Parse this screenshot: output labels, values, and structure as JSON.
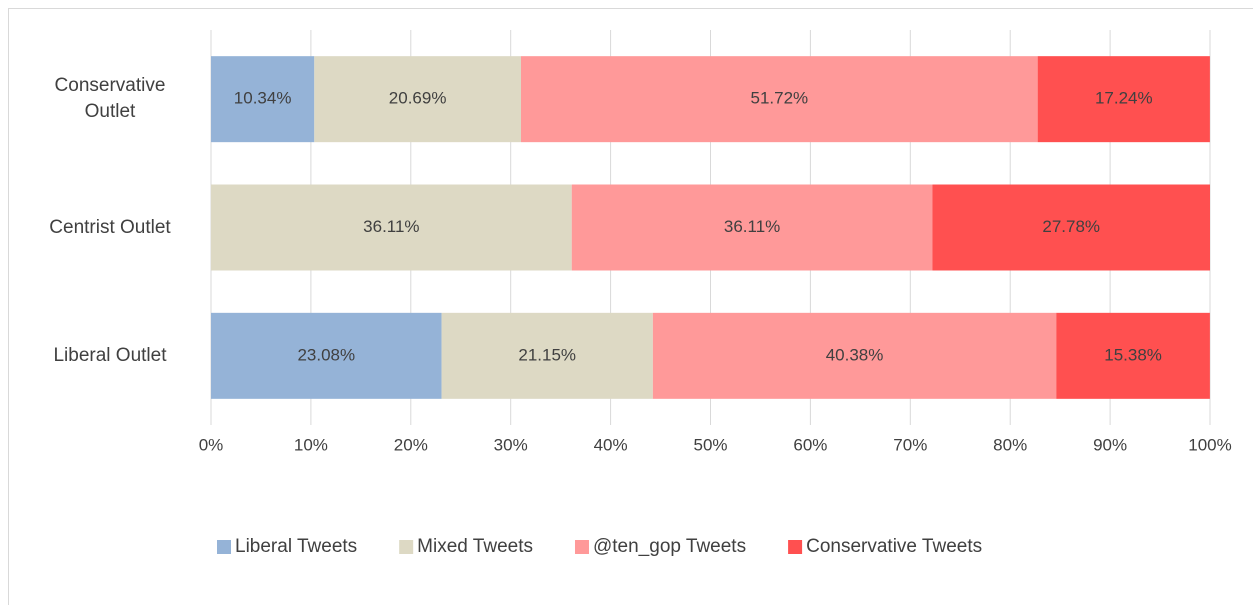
{
  "chart_data": {
    "type": "stacked-barh",
    "categories": [
      "Conservative Outlet",
      "Centrist Outlet",
      "Liberal Outlet"
    ],
    "series": [
      {
        "name": "Liberal Tweets",
        "color": "#95b3d7",
        "values": [
          10.34,
          null,
          23.08
        ],
        "value_labels": [
          "10.34%",
          null,
          "23.08%"
        ]
      },
      {
        "name": "Mixed Tweets",
        "color": "#ddd9c4",
        "values": [
          20.69,
          36.11,
          21.15
        ],
        "value_labels": [
          "20.69%",
          "36.11%",
          "21.15%"
        ]
      },
      {
        "name": "@ten_gop Tweets",
        "color": "#ff9999",
        "values": [
          51.72,
          36.11,
          40.38
        ],
        "value_labels": [
          "51.72%",
          "36.11%",
          "40.38%"
        ]
      },
      {
        "name": "Conservative Tweets",
        "color": "#ff5050",
        "values": [
          17.24,
          27.78,
          15.38
        ],
        "value_labels": [
          "17.24%",
          "27.78%",
          "15.38%"
        ]
      }
    ],
    "xlim": [
      0,
      100
    ],
    "xticks": [
      {
        "value": 0,
        "label": "0%"
      },
      {
        "value": 10,
        "label": "10%"
      },
      {
        "value": 20,
        "label": "20%"
      },
      {
        "value": 30,
        "label": "30%"
      },
      {
        "value": 40,
        "label": "40%"
      },
      {
        "value": 50,
        "label": "50%"
      },
      {
        "value": 60,
        "label": "60%"
      },
      {
        "value": 70,
        "label": "70%"
      },
      {
        "value": 80,
        "label": "80%"
      },
      {
        "value": 90,
        "label": "90%"
      },
      {
        "value": 100,
        "label": "100%"
      }
    ],
    "grid": true,
    "legend": "bottom"
  }
}
